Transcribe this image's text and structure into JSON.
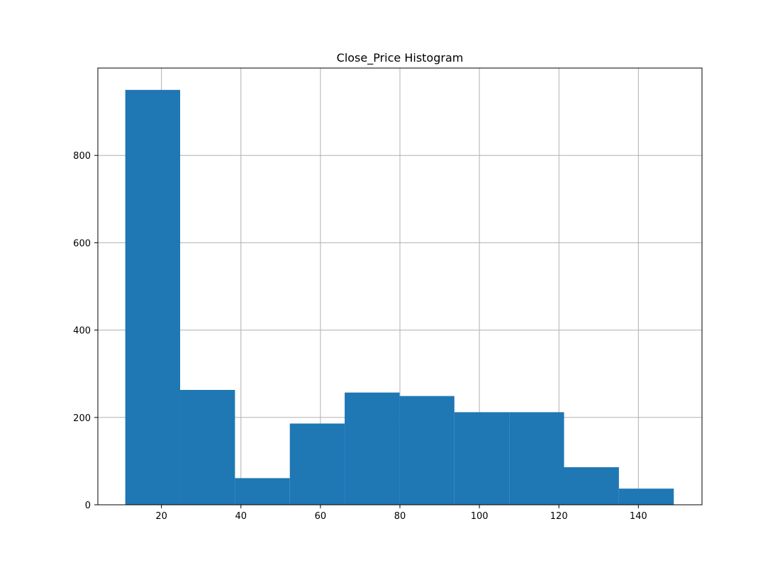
{
  "chart_data": {
    "type": "bar",
    "title": "Close_Price Histogram",
    "xlabel": "",
    "ylabel": "",
    "xlim": [
      4,
      156
    ],
    "ylim": [
      0,
      1000
    ],
    "grid": true,
    "bar_color": "#1f77b4",
    "bins": [
      {
        "x0": 10.9,
        "x1": 24.7,
        "count": 950
      },
      {
        "x0": 24.7,
        "x1": 38.5,
        "count": 263
      },
      {
        "x0": 38.5,
        "x1": 52.3,
        "count": 61
      },
      {
        "x0": 52.3,
        "x1": 66.1,
        "count": 186
      },
      {
        "x0": 66.1,
        "x1": 79.9,
        "count": 257
      },
      {
        "x0": 79.9,
        "x1": 93.7,
        "count": 249
      },
      {
        "x0": 93.7,
        "x1": 107.5,
        "count": 212
      },
      {
        "x0": 107.5,
        "x1": 121.3,
        "count": 212
      },
      {
        "x0": 121.3,
        "x1": 135.1,
        "count": 86
      },
      {
        "x0": 135.1,
        "x1": 148.9,
        "count": 37
      }
    ],
    "xticks": [
      20,
      40,
      60,
      80,
      100,
      120,
      140
    ],
    "yticks": [
      0,
      200,
      400,
      600,
      800
    ]
  }
}
